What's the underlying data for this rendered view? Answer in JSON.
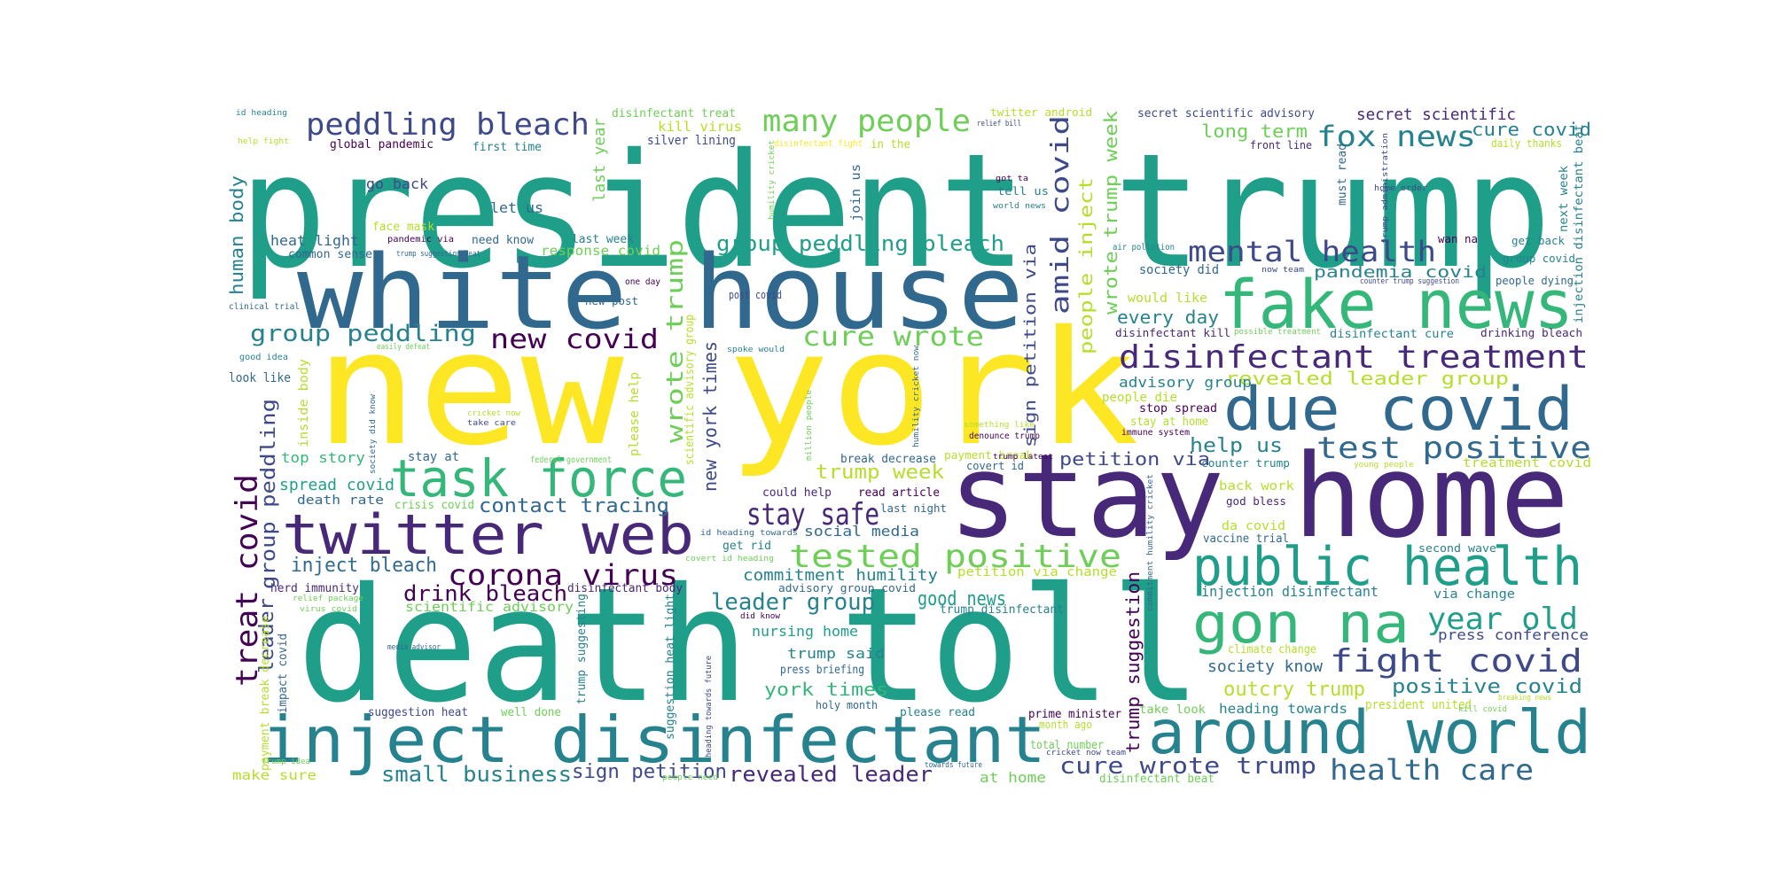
{
  "palette": {
    "background": "#ffffff",
    "viridis": [
      "#440154",
      "#482878",
      "#3e4989",
      "#31688e",
      "#26828e",
      "#1f9e89",
      "#35b779",
      "#6ece58",
      "#b5de2b",
      "#fde725"
    ]
  },
  "words": [
    {
      "id": "president-trump",
      "text": "president trump",
      "color": "#1f9e89"
    },
    {
      "id": "white-house",
      "text": "white house",
      "color": "#31688e"
    },
    {
      "id": "new-york",
      "text": "new york",
      "color": "#fde725"
    },
    {
      "id": "death-toll",
      "text": "death toll",
      "color": "#1f9e89"
    },
    {
      "id": "stay-home",
      "text": "stay home",
      "color": "#482878"
    },
    {
      "id": "fake-news",
      "text": "fake news",
      "color": "#35b779"
    },
    {
      "id": "inject-disinfectant",
      "text": "inject disinfectant",
      "color": "#26828e"
    },
    {
      "id": "around-world",
      "text": "around world",
      "color": "#26828e"
    },
    {
      "id": "due-covid",
      "text": "due covid",
      "color": "#31688e"
    },
    {
      "id": "public-health",
      "text": "public health",
      "color": "#1f9e89"
    },
    {
      "id": "gon-na",
      "text": "gon na",
      "color": "#35b779"
    },
    {
      "id": "twitter-web",
      "text": "twitter web",
      "color": "#482878"
    },
    {
      "id": "task-force",
      "text": "task force",
      "color": "#35b779"
    },
    {
      "id": "disinfectant-treatment",
      "text": "disinfectant treatment",
      "color": "#482878"
    },
    {
      "id": "test-positive",
      "text": "test positive",
      "color": "#31688e"
    },
    {
      "id": "tested-positive",
      "text": "tested positive",
      "color": "#6ece58"
    },
    {
      "id": "peddling-bleach",
      "text": "peddling bleach",
      "color": "#3e4989"
    },
    {
      "id": "many-people",
      "text": "many people",
      "color": "#6ece58"
    },
    {
      "id": "fox-news",
      "text": "fox news",
      "color": "#26828e"
    },
    {
      "id": "mental-health",
      "text": "mental health",
      "color": "#3e4989"
    },
    {
      "id": "group-peddling-bleach",
      "text": "group peddling bleach",
      "color": "#1f9e89"
    },
    {
      "id": "group-peddling",
      "text": "group peddling",
      "color": "#26828e"
    },
    {
      "id": "new-covid",
      "text": "new covid",
      "color": "#440154"
    },
    {
      "id": "cure-wrote",
      "text": "cure wrote",
      "color": "#6ece58"
    },
    {
      "id": "corona-virus",
      "text": "corona virus",
      "color": "#440154"
    },
    {
      "id": "stay-safe",
      "text": "stay safe",
      "color": "#482878"
    },
    {
      "id": "fight-covid",
      "text": "fight covid",
      "color": "#3e4989"
    },
    {
      "id": "year-old",
      "text": "year old",
      "color": "#1f9e89"
    },
    {
      "id": "health-care",
      "text": "health care",
      "color": "#31688e"
    },
    {
      "id": "cure-wrote-trump",
      "text": "cure wrote trump",
      "color": "#3e4989"
    },
    {
      "id": "revealed-leader",
      "text": "revealed leader",
      "color": "#482878"
    },
    {
      "id": "small-business",
      "text": "small business",
      "color": "#26828e"
    },
    {
      "id": "sign-petition",
      "text": "sign petition",
      "color": "#3e4989"
    },
    {
      "id": "leader-group",
      "text": "leader group",
      "color": "#26828e"
    },
    {
      "id": "drink-bleach",
      "text": "drink bleach",
      "color": "#440154"
    },
    {
      "id": "inject-bleach",
      "text": "inject bleach",
      "color": "#31688e"
    },
    {
      "id": "contact-tracing",
      "text": "contact tracing",
      "color": "#31688e"
    },
    {
      "id": "good-news",
      "text": "good news",
      "color": "#1f9e89"
    },
    {
      "id": "york-times",
      "text": "york times",
      "color": "#35b779"
    },
    {
      "id": "positive-covid",
      "text": "positive covid",
      "color": "#26828e"
    },
    {
      "id": "outcry-trump",
      "text": "outcry trump",
      "color": "#b5de2b"
    },
    {
      "id": "help-us",
      "text": "help us",
      "color": "#26828e"
    },
    {
      "id": "trump-week",
      "text": "trump week",
      "color": "#b5de2b"
    },
    {
      "id": "petition-via",
      "text": "petition via",
      "color": "#3e4989"
    },
    {
      "id": "commitment-humility",
      "text": "commitment humility",
      "color": "#26828e"
    },
    {
      "id": "every-day",
      "text": "every day",
      "color": "#26828e"
    },
    {
      "id": "pandemia-covid",
      "text": "pandemia covid",
      "color": "#26828e"
    },
    {
      "id": "long-term",
      "text": "long term",
      "color": "#6ece58"
    },
    {
      "id": "cure-covid",
      "text": "cure covid",
      "color": "#26828e"
    },
    {
      "id": "secret-scientific",
      "text": "secret scientific",
      "color": "#482878"
    },
    {
      "id": "secret-scientific-advisory",
      "text": "secret scientific advisory",
      "color": "#3e4989"
    },
    {
      "id": "revealed-leader-group",
      "text": "revealed leader group",
      "color": "#b5de2b"
    },
    {
      "id": "advisory-group",
      "text": "advisory group",
      "color": "#26828e"
    },
    {
      "id": "society-know",
      "text": "society know",
      "color": "#31688e"
    },
    {
      "id": "press-conference",
      "text": "press conference",
      "color": "#3e4989"
    },
    {
      "id": "trump-said",
      "text": "trump said",
      "color": "#26828e"
    },
    {
      "id": "nursing-home",
      "text": "nursing home",
      "color": "#1f9e89"
    },
    {
      "id": "social-media",
      "text": "social media",
      "color": "#31688e"
    },
    {
      "id": "scientific-advisory",
      "text": "scientific advisory",
      "color": "#6ece58"
    },
    {
      "id": "spread-covid",
      "text": "spread covid",
      "color": "#1f9e89"
    },
    {
      "id": "top-story",
      "text": "top story",
      "color": "#35b779"
    },
    {
      "id": "heat-light",
      "text": "heat light",
      "color": "#31688e"
    },
    {
      "id": "go-back",
      "text": "go back",
      "color": "#3e4989"
    },
    {
      "id": "let-us",
      "text": "let us",
      "color": "#31688e"
    },
    {
      "id": "first-time",
      "text": "first time",
      "color": "#26828e"
    },
    {
      "id": "silver-lining",
      "text": "silver lining",
      "color": "#3e4989"
    },
    {
      "id": "kill-virus",
      "text": "kill virus",
      "color": "#b5de2b"
    },
    {
      "id": "global-pandemic",
      "text": "global pandemic",
      "color": "#440154"
    },
    {
      "id": "disinfectant-treat",
      "text": "disinfectant treat",
      "color": "#6ece58"
    },
    {
      "id": "last-week",
      "text": "last week",
      "color": "#26828e"
    },
    {
      "id": "response-covid",
      "text": "response covid",
      "color": "#6ece58"
    },
    {
      "id": "need-know",
      "text": "need know",
      "color": "#31688e"
    },
    {
      "id": "face-mask",
      "text": "face mask",
      "color": "#b5de2b"
    },
    {
      "id": "common-sense",
      "text": "common sense",
      "color": "#31688e"
    },
    {
      "id": "death-rate",
      "text": "death rate",
      "color": "#31688e"
    },
    {
      "id": "crisis-covid",
      "text": "crisis covid",
      "color": "#6ece58"
    },
    {
      "id": "herd-immunity",
      "text": "herd immunity",
      "color": "#482878"
    },
    {
      "id": "make-sure",
      "text": "make sure",
      "color": "#b5de2b"
    },
    {
      "id": "well-done",
      "text": "well done",
      "color": "#6ece58"
    },
    {
      "id": "suggestion-heat",
      "text": "suggestion heat",
      "color": "#3e4989"
    },
    {
      "id": "at-home",
      "text": "at home",
      "color": "#6ece58"
    },
    {
      "id": "please-read",
      "text": "please read",
      "color": "#26828e"
    },
    {
      "id": "holy-month",
      "text": "holy month",
      "color": "#31688e"
    },
    {
      "id": "press-briefing",
      "text": "press briefing",
      "color": "#31688e"
    },
    {
      "id": "prime-minister",
      "text": "prime minister",
      "color": "#440154"
    },
    {
      "id": "total-number",
      "text": "total number",
      "color": "#6ece58"
    },
    {
      "id": "month-ago",
      "text": "month ago",
      "color": "#b5de2b"
    },
    {
      "id": "heading-towards",
      "text": "heading towards",
      "color": "#26828e"
    },
    {
      "id": "take-look",
      "text": "take look",
      "color": "#6ece58"
    },
    {
      "id": "president-united",
      "text": "president united",
      "color": "#b5de2b"
    },
    {
      "id": "climate-change",
      "text": "climate change",
      "color": "#b5de2b"
    },
    {
      "id": "injection-disinfectant",
      "text": "injection disinfectant",
      "color": "#26828e"
    },
    {
      "id": "via-change",
      "text": "via change",
      "color": "#26828e"
    },
    {
      "id": "second-wave",
      "text": "second wave",
      "color": "#26828e"
    },
    {
      "id": "vaccine-trial",
      "text": "vaccine trial",
      "color": "#31688e"
    },
    {
      "id": "da-covid",
      "text": "da covid",
      "color": "#b5de2b"
    },
    {
      "id": "god-bless",
      "text": "god bless",
      "color": "#482878"
    },
    {
      "id": "back-work",
      "text": "back work",
      "color": "#b5de2b"
    },
    {
      "id": "counter-trump",
      "text": "counter trump",
      "color": "#26828e"
    },
    {
      "id": "treatment-covid",
      "text": "treatment covid",
      "color": "#b5de2b"
    },
    {
      "id": "stay-at-home",
      "text": "stay at home",
      "color": "#b5de2b"
    },
    {
      "id": "stop-spread",
      "text": "stop spread",
      "color": "#440154"
    },
    {
      "id": "people-die",
      "text": "people die",
      "color": "#b5de2b"
    },
    {
      "id": "would-like",
      "text": "would like",
      "color": "#b5de2b"
    },
    {
      "id": "society-did",
      "text": "society did",
      "color": "#31688e"
    },
    {
      "id": "disinfectant-kill",
      "text": "disinfectant kill",
      "color": "#482878"
    },
    {
      "id": "disinfectant-cure",
      "text": "disinfectant cure",
      "color": "#26828e"
    },
    {
      "id": "drinking-bleach",
      "text": "drinking bleach",
      "color": "#482878"
    },
    {
      "id": "people-dying",
      "text": "people dying",
      "color": "#31688e"
    },
    {
      "id": "group-covid",
      "text": "group covid",
      "color": "#26828e"
    },
    {
      "id": "get-back",
      "text": "get back",
      "color": "#26828e"
    },
    {
      "id": "wan-na",
      "text": "wan na",
      "color": "#440154"
    },
    {
      "id": "front-line",
      "text": "front line",
      "color": "#482878"
    },
    {
      "id": "twitter-android",
      "text": "twitter android",
      "color": "#b5de2b"
    },
    {
      "id": "daily-thanks",
      "text": "daily thanks",
      "color": "#b5de2b"
    },
    {
      "id": "stay-at",
      "text": "stay at",
      "color": "#31688e"
    },
    {
      "id": "break-decrease",
      "text": "break decrease",
      "color": "#31688e"
    },
    {
      "id": "read-article",
      "text": "read article",
      "color": "#440154"
    },
    {
      "id": "could-help",
      "text": "could help",
      "color": "#482878"
    },
    {
      "id": "last-night",
      "text": "last night",
      "color": "#31688e"
    },
    {
      "id": "get-rid",
      "text": "get rid",
      "color": "#26828e"
    },
    {
      "id": "disinfectant-body",
      "text": "disinfectant body",
      "color": "#482878"
    },
    {
      "id": "advisory-group-covid",
      "text": "advisory group covid",
      "color": "#31688e"
    },
    {
      "id": "petition-via-change",
      "text": "petition via change",
      "color": "#b5de2b"
    },
    {
      "id": "trump-disinfectant",
      "text": "trump disinfectant",
      "color": "#26828e"
    },
    {
      "id": "payment-break",
      "text": "payment break",
      "color": "#b5de2b"
    },
    {
      "id": "covert-id",
      "text": "covert id",
      "color": "#31688e"
    },
    {
      "id": "denounce-trump",
      "text": "denounce trump",
      "color": "#440154"
    },
    {
      "id": "immune-system",
      "text": "immune system",
      "color": "#440154"
    },
    {
      "id": "federal-government",
      "text": "federal government",
      "color": "#6ece58"
    },
    {
      "id": "post-covid",
      "text": "post covid",
      "color": "#3e4989"
    },
    {
      "id": "new-post",
      "text": "new post",
      "color": "#31688e"
    },
    {
      "id": "one-day",
      "text": "one day",
      "color": "#440154"
    },
    {
      "id": "look-like",
      "text": "look like",
      "color": "#31688e"
    },
    {
      "id": "good-idea",
      "text": "good idea",
      "color": "#26828e"
    },
    {
      "id": "easily-defeat",
      "text": "easily defeat",
      "color": "#6ece58"
    },
    {
      "id": "clinical-trial",
      "text": "clinical trial",
      "color": "#31688e"
    },
    {
      "id": "pandemic-via",
      "text": "pandemic via",
      "color": "#440154"
    },
    {
      "id": "trump-suggestion-heat",
      "text": "trump suggestion heat",
      "color": "#31688e"
    },
    {
      "id": "id-heading",
      "text": "id heading",
      "color": "#26828e"
    },
    {
      "id": "help-fight",
      "text": "help fight",
      "color": "#b5de2b"
    },
    {
      "id": "relief-bill",
      "text": "relief bill",
      "color": "#3e4989"
    },
    {
      "id": "got-ta",
      "text": "got ta",
      "color": "#440154"
    },
    {
      "id": "tell-us",
      "text": "tell us",
      "color": "#26828e"
    },
    {
      "id": "world-news",
      "text": "world news",
      "color": "#26828e"
    },
    {
      "id": "air-pollution",
      "text": "air pollution",
      "color": "#26828e"
    },
    {
      "id": "now-team",
      "text": "now team",
      "color": "#3e4989"
    },
    {
      "id": "home-order",
      "text": "home order",
      "color": "#3e4989"
    },
    {
      "id": "counter-trump-suggestion",
      "text": "counter trump suggestion",
      "color": "#3e4989"
    },
    {
      "id": "possible-treatment",
      "text": "possible treatment",
      "color": "#6ece58"
    },
    {
      "id": "id-heading-towards",
      "text": "id heading towards",
      "color": "#31688e"
    },
    {
      "id": "covert-id-heading",
      "text": "covert id heading",
      "color": "#6ece58"
    },
    {
      "id": "cricket-now",
      "text": "cricket now",
      "color": "#b5de2b"
    },
    {
      "id": "take-care",
      "text": "take care",
      "color": "#3e4989"
    },
    {
      "id": "spoke-would",
      "text": "spoke would",
      "color": "#26828e"
    },
    {
      "id": "something-like",
      "text": "something like",
      "color": "#b5de2b"
    },
    {
      "id": "trump-latest",
      "text": "trump latest",
      "color": "#440154"
    },
    {
      "id": "young-people",
      "text": "young people",
      "color": "#b5de2b"
    },
    {
      "id": "did-know",
      "text": "did know",
      "color": "#440154"
    },
    {
      "id": "media-advisor",
      "text": "media advisor",
      "color": "#31688e"
    },
    {
      "id": "relief-package",
      "text": "relief package",
      "color": "#6ece58"
    },
    {
      "id": "virus-covid",
      "text": "virus covid",
      "color": "#6ece58"
    },
    {
      "id": "trump-idea",
      "text": "trump idea",
      "color": "#6ece58"
    },
    {
      "id": "people-need",
      "text": "people need",
      "color": "#6ece58"
    },
    {
      "id": "towards-future",
      "text": "towards future",
      "color": "#31688e"
    },
    {
      "id": "cricket-now-team",
      "text": "cricket now team",
      "color": "#3e4989"
    },
    {
      "id": "disinfectant-beat",
      "text": "disinfectant beat",
      "color": "#6ece58"
    },
    {
      "id": "kill-covid",
      "text": "kill covid",
      "color": "#6ece58"
    },
    {
      "id": "breaking-news",
      "text": "breaking news",
      "color": "#b5de2b"
    },
    {
      "id": "disinfectant-fight",
      "text": "disinfectant fight",
      "color": "#fde725"
    },
    {
      "id": "in-the",
      "text": "in the",
      "color": "#b5de2b"
    },
    {
      "id": "v-human-body",
      "text": "human body",
      "color": "#26828e"
    },
    {
      "id": "v-treat-covid",
      "text": "treat covid",
      "color": "#440154"
    },
    {
      "id": "v-group-peddling",
      "text": "group peddling",
      "color": "#3e4989"
    },
    {
      "id": "v-leader",
      "text": "leader",
      "color": "#3e4989"
    },
    {
      "id": "v-inside-body",
      "text": "inside body",
      "color": "#b5de2b"
    },
    {
      "id": "v-society-did-know",
      "text": "society did know",
      "color": "#31688e"
    },
    {
      "id": "v-payment-break-decrease",
      "text": "payment break decrease",
      "color": "#b5de2b"
    },
    {
      "id": "v-impact-covid",
      "text": "impact covid",
      "color": "#31688e"
    },
    {
      "id": "v-last-year",
      "text": "last year",
      "color": "#6ece58"
    },
    {
      "id": "v-wrote-trump",
      "text": "wrote trump",
      "color": "#6ece58"
    },
    {
      "id": "v-new-york-times",
      "text": "new york times",
      "color": "#3e4989"
    },
    {
      "id": "v-scientific-advisory-group",
      "text": "scientific advisory group",
      "color": "#b5de2b"
    },
    {
      "id": "v-please-help",
      "text": "please help",
      "color": "#b5de2b"
    },
    {
      "id": "v-join-us",
      "text": "join us",
      "color": "#31688e"
    },
    {
      "id": "v-trump-suggesting",
      "text": "trump suggesting",
      "color": "#26828e"
    },
    {
      "id": "v-suggestion-heat-light",
      "text": "suggestion heat light",
      "color": "#26828e"
    },
    {
      "id": "v-heading-towards-future",
      "text": "heading towards future",
      "color": "#3e4989"
    },
    {
      "id": "v-million-people",
      "text": "million people",
      "color": "#6ece58"
    },
    {
      "id": "v-humility-cricket",
      "text": "humility cricket",
      "color": "#6ece58"
    },
    {
      "id": "v-humility-cricket-now",
      "text": "humility cricket now",
      "color": "#31688e"
    },
    {
      "id": "v-amid-covid",
      "text": "amid covid",
      "color": "#3e4989"
    },
    {
      "id": "v-sign-petition-via",
      "text": "sign petition via",
      "color": "#3e4989"
    },
    {
      "id": "v-people-inject",
      "text": "people inject",
      "color": "#b5de2b"
    },
    {
      "id": "v-wrote-trump-week",
      "text": "wrote trump week",
      "color": "#6ece58"
    },
    {
      "id": "v-trump-suggestion",
      "text": "trump suggestion",
      "color": "#440154"
    },
    {
      "id": "v-commitment-humility-cricket",
      "text": "commitment humility cricket",
      "color": "#31688e"
    },
    {
      "id": "v-must-read",
      "text": "must read",
      "color": "#31688e"
    },
    {
      "id": "v-trump-administration",
      "text": "trump administration",
      "color": "#3e4989"
    },
    {
      "id": "v-next-week",
      "text": "next week",
      "color": "#26828e"
    },
    {
      "id": "v-injection-disinfectant-beat",
      "text": "injection disinfectant beat",
      "color": "#26828e"
    }
  ]
}
